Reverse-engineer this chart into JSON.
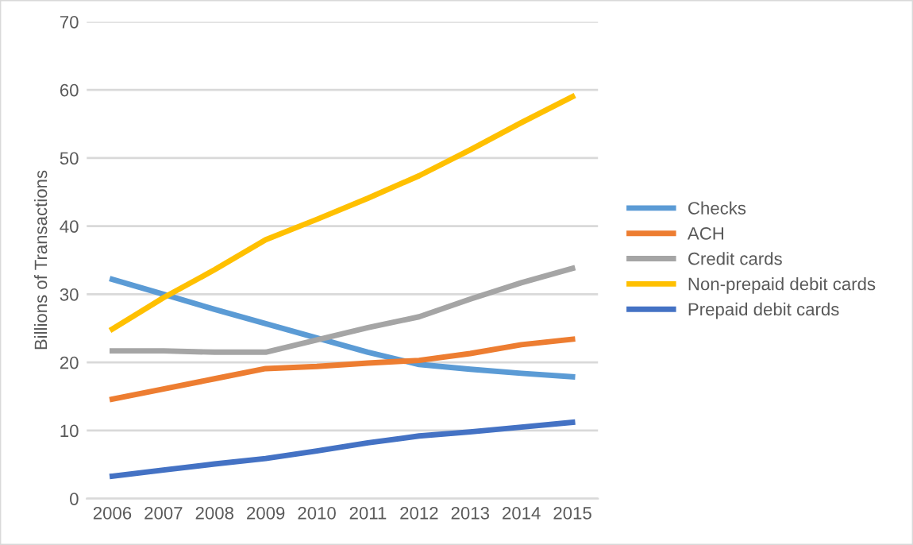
{
  "chart_data": {
    "type": "line",
    "ylabel": "Billions of Transactions",
    "categories": [
      "2006",
      "2007",
      "2008",
      "2009",
      "2010",
      "2011",
      "2012",
      "2013",
      "2014",
      "2015"
    ],
    "series": [
      {
        "name": "Checks",
        "color": "#5b9bd5",
        "values": [
          32.2,
          30.0,
          27.8,
          25.7,
          23.6,
          21.5,
          19.7,
          19.0,
          18.4,
          17.9
        ]
      },
      {
        "name": "ACH",
        "color": "#ed7d31",
        "values": [
          14.6,
          16.1,
          17.6,
          19.1,
          19.4,
          19.9,
          20.3,
          21.3,
          22.6,
          23.4
        ]
      },
      {
        "name": "Credit cards",
        "color": "#a5a5a5",
        "values": [
          21.7,
          21.7,
          21.5,
          21.5,
          23.3,
          25.1,
          26.7,
          29.3,
          31.7,
          33.8
        ]
      },
      {
        "name": "Non-prepaid debit cards",
        "color": "#ffc000",
        "values": [
          24.9,
          29.5,
          33.6,
          38.0,
          41.0,
          44.1,
          47.4,
          51.2,
          55.2,
          59.0
        ]
      },
      {
        "name": "Prepaid debit cards",
        "color": "#4472c4",
        "values": [
          3.3,
          4.2,
          5.1,
          5.9,
          7.0,
          8.2,
          9.2,
          9.8,
          10.5,
          11.2
        ]
      }
    ],
    "ylim": [
      0,
      70
    ],
    "yticks": [
      0,
      10,
      20,
      30,
      40,
      50,
      60,
      70
    ],
    "grid": "y",
    "legend": "right",
    "marker": "none",
    "line_style": "solid"
  }
}
